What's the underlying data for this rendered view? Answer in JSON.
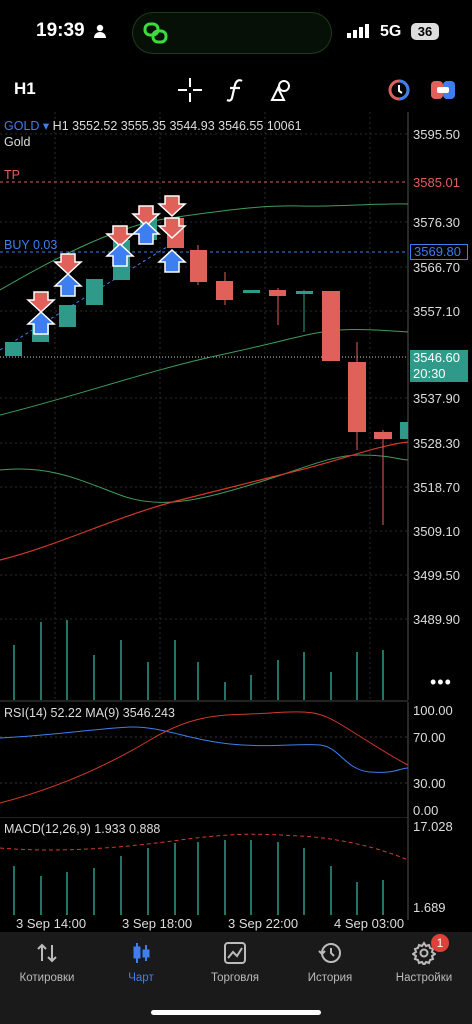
{
  "status_bar": {
    "time": "19:39",
    "network": "5G",
    "battery": "36"
  },
  "toolbar": {
    "timeframe": "H1"
  },
  "header": {
    "symbol": "GOLD",
    "timeframe": "H1",
    "ohlc": "3552.52 3555.35 3544.93 3546.55 10061",
    "name": "Gold"
  },
  "levels": {
    "tp_label": "TP",
    "tp_price": "3585.01",
    "buy_label": "BUY 0.03",
    "buy_price": "3569.80",
    "current_price": "3546.60",
    "current_time": "20:30"
  },
  "price_axis": [
    "3595.50",
    "3576.30",
    "3566.70",
    "3557.10",
    "3537.90",
    "3528.30",
    "3518.70",
    "3509.10",
    "3499.50",
    "3489.90"
  ],
  "rsi": {
    "label": "RSI(14) 52.22 MA(9) 3546.243",
    "axis": [
      "100.00",
      "70.00",
      "30.00",
      "0.00"
    ]
  },
  "macd": {
    "label": "MACD(12,26,9) 1.933 0.888",
    "axis_top": "17.028",
    "axis_bottom": "1.689"
  },
  "time_axis": [
    "3 Sep 14:00",
    "3 Sep 18:00",
    "3 Sep 22:00",
    "4 Sep 03:00"
  ],
  "nav": {
    "items": [
      {
        "label": "Котировки"
      },
      {
        "label": "Чарт"
      },
      {
        "label": "Торговля"
      },
      {
        "label": "История"
      },
      {
        "label": "Настройки",
        "badge": "1"
      }
    ]
  },
  "colors": {
    "bull": "#2f9a8a",
    "bear": "#e0605a",
    "buy_line": "#3d7ff0",
    "tp": "#e0605a",
    "active_nav": "#3d7ff0"
  }
}
